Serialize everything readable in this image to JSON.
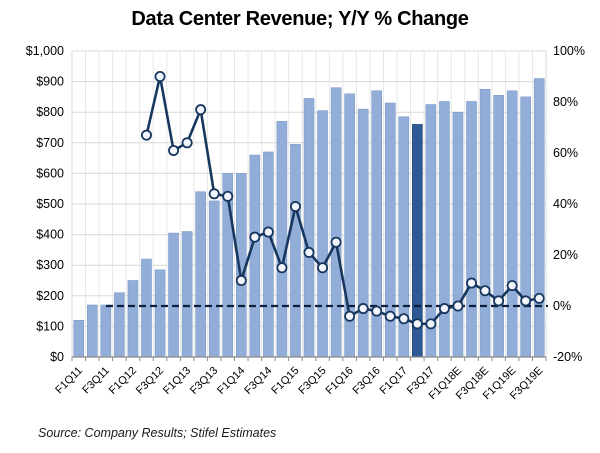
{
  "title": "Data Center Revenue; Y/Y % Change",
  "source": "Source: Company Results; Stifel Estimates",
  "chart_data": {
    "type": "combo-bar-line",
    "bar_series": {
      "name": "Data Center Revenue ($M)",
      "values": [
        120,
        170,
        170,
        210,
        250,
        320,
        285,
        405,
        410,
        540,
        510,
        600,
        600,
        660,
        670,
        770,
        695,
        845,
        805,
        880,
        860,
        810,
        870,
        830,
        785,
        760,
        825,
        835,
        800,
        835,
        875,
        855,
        870,
        850,
        910
      ],
      "highlighted_index": 25,
      "highlight_meaning": "dark navy highlighted quarter"
    },
    "line_series": {
      "name": "Y/Y % Change",
      "start_index": 5,
      "values": [
        67,
        90,
        61,
        64,
        77,
        44,
        43,
        10,
        27,
        29,
        15,
        39,
        21,
        15,
        25,
        -4,
        -1,
        -2,
        -4,
        -5,
        -7,
        -7,
        -1,
        0,
        9,
        6,
        2,
        8,
        2,
        3
      ]
    },
    "x_tick_labels": [
      "F1Q11",
      "F3Q11",
      "F1Q12",
      "F3Q12",
      "F1Q13",
      "F3Q13",
      "F1Q14",
      "F3Q14",
      "F1Q15",
      "F3Q15",
      "F1Q16",
      "F3Q16",
      "F1Q17",
      "F3Q17",
      "F1Q18E",
      "F3Q18E",
      "F1Q19E",
      "F3Q19E"
    ],
    "bars_per_label": 2,
    "y_left": {
      "min": 0,
      "max": 1000,
      "step": 100,
      "labels": [
        "$0",
        "$100",
        "$200",
        "$300",
        "$400",
        "$500",
        "$600",
        "$700",
        "$800",
        "$900",
        "$1,000"
      ]
    },
    "y_right": {
      "min": -20,
      "max": 100,
      "step": 20,
      "labels": [
        "-20%",
        "0%",
        "20%",
        "40%",
        "60%",
        "80%",
        "100%"
      ]
    },
    "zero_reference_line": true,
    "grid": true,
    "colors": {
      "bar": "#92aed8",
      "bar_edge": "#7d99c7",
      "bar_highlight": "#2d5a96",
      "bar_highlight_edge": "#1d3e6b",
      "line": "#17375e",
      "marker_fill": "#f2f5fb",
      "zero_line": "#0d1f3c",
      "h_grid": "#d9d9d9",
      "v_grid": "#e7e7e7",
      "axis": "#8c8c8c",
      "text": "#000000"
    }
  }
}
